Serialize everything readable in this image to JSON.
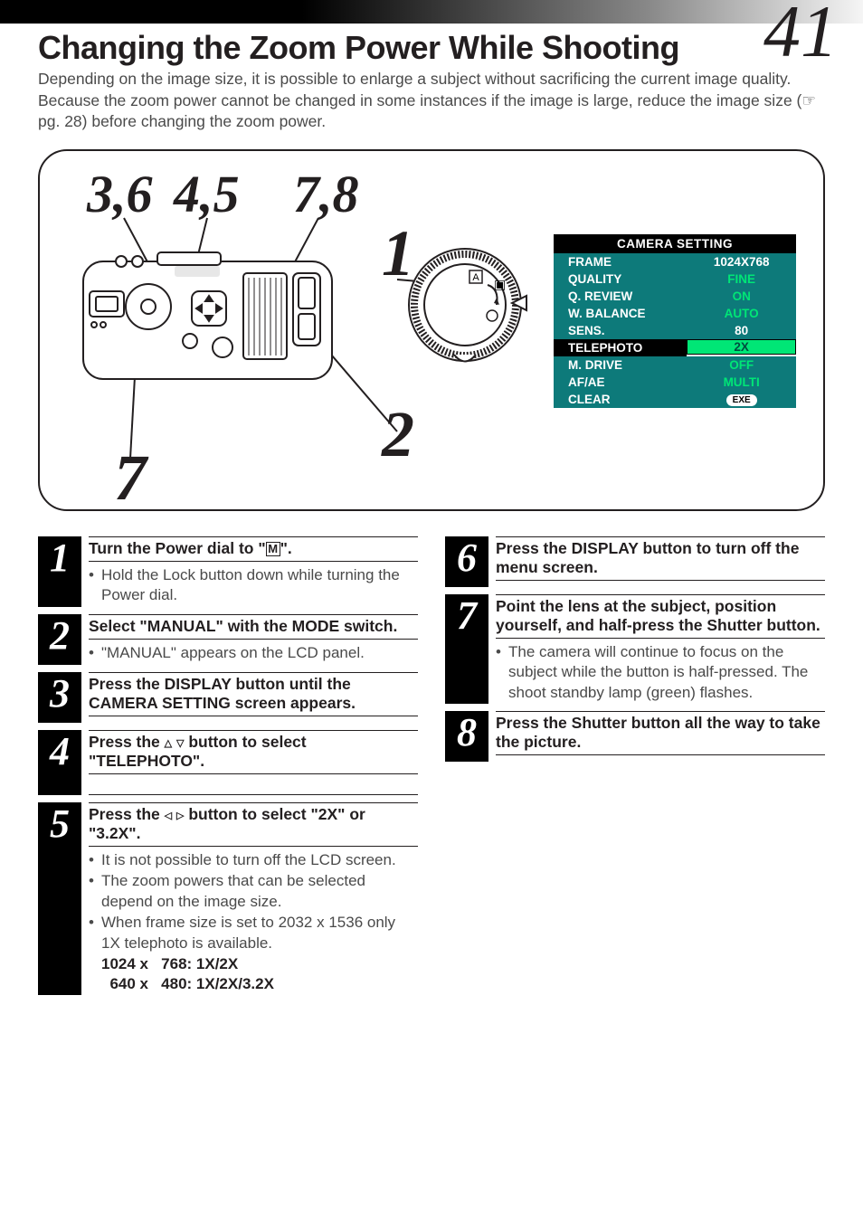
{
  "page_number": "41",
  "section_title": "Changing the Zoom Power While Shooting",
  "intro": "Depending on the image size, it is possible to enlarge a subject without sacrificing the current image quality. Because the zoom power cannot be changed in some instances if the image is large, reduce the image size (☞ pg. 28) before changing the zoom power.",
  "diagram_labels": {
    "l36": "3,6",
    "l45": "4,5",
    "l78": "7,8",
    "l1": "1",
    "l2": "2",
    "l7": "7"
  },
  "menu": {
    "header": "CAMERA SETTING",
    "rows": [
      {
        "left": "FRAME",
        "right": "1024X768",
        "selected": false,
        "highlight": false
      },
      {
        "left": "QUALITY",
        "right": "FINE",
        "selected": false,
        "highlight": true
      },
      {
        "left": "Q. REVIEW",
        "right": "ON",
        "selected": false,
        "highlight": true
      },
      {
        "left": "W. BALANCE",
        "right": "AUTO",
        "selected": false,
        "highlight": true
      },
      {
        "left": "SENS.",
        "right": "80",
        "selected": false,
        "highlight": false
      },
      {
        "left": "TELEPHOTO",
        "right": "2X",
        "selected": true,
        "highlight": false
      },
      {
        "left": "M. DRIVE",
        "right": "OFF",
        "selected": false,
        "highlight": true
      },
      {
        "left": "AF/AE",
        "right": "MULTI",
        "selected": false,
        "highlight": true
      },
      {
        "left": "CLEAR",
        "right_pill": "EXE",
        "selected": false,
        "highlight": false
      }
    ]
  },
  "steps_left": [
    {
      "num": "1",
      "head_html": "Turn the Power dial to \"<span class='m-box'>M</span>\".",
      "bullets": [
        "Hold the Lock button down while turning the Power dial."
      ]
    },
    {
      "num": "2",
      "head_html": "Select \"MANUAL\" with the MODE switch.",
      "bullets": [
        "\"MANUAL\" appears on the LCD panel."
      ]
    },
    {
      "num": "3",
      "head_html": "Press the DISPLAY button until the CAMERA SETTING screen appears.",
      "bullets": []
    },
    {
      "num": "4",
      "head_html": "Press the <span class='tri'>△</span> <span class='tri'>▽</span> button to select \"TELEPHOTO\".",
      "bullets": [],
      "extra_rule": true
    },
    {
      "num": "5",
      "head_html": "Press the <span class='tri'>◁</span> <span class='tri'>▷</span> button to select \"2X\" or \"3.2X\".",
      "bullets": [
        "It is not possible to turn off the LCD screen.",
        "The zoom powers that can be selected depend on the image size.",
        "When frame size is set to 2032 x 1536 only 1X telephoto is available."
      ],
      "sub_bold": [
        "1024 x   768: 1X/2X",
        "  640 x   480: 1X/2X/3.2X"
      ]
    }
  ],
  "steps_right": [
    {
      "num": "6",
      "head_html": "Press the DISPLAY button to turn off the menu screen.",
      "bullets": []
    },
    {
      "num": "7",
      "head_html": "Point the lens at the subject, position yourself, and half-press the Shutter button.",
      "bullets": [
        "The camera will continue to focus on the subject while the button is half-pressed. The shoot standby lamp (green) flashes."
      ]
    },
    {
      "num": "8",
      "head_html": "Press the Shutter button all the way to take the picture.",
      "bullets": []
    }
  ]
}
